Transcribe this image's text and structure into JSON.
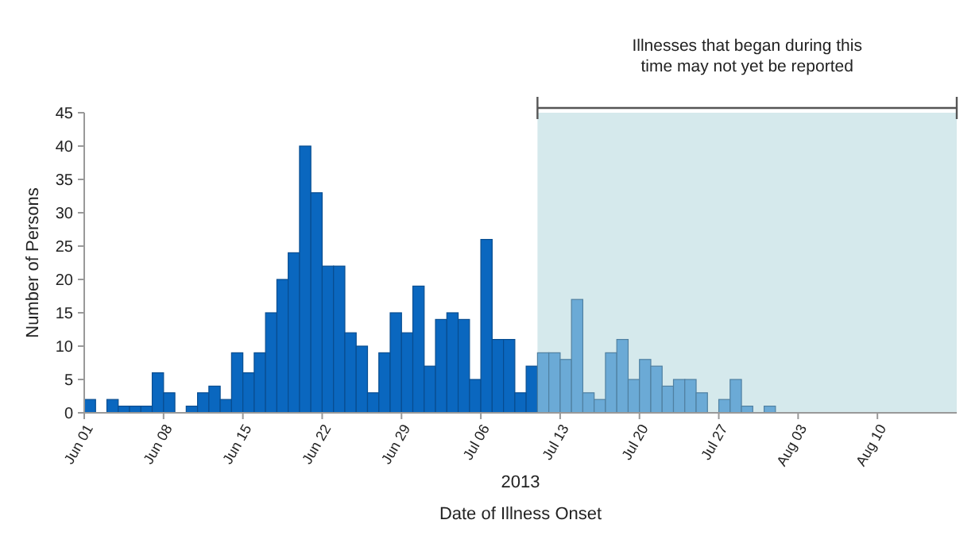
{
  "chart_data": {
    "type": "bar",
    "xlabel": "Date of Illness Onset",
    "ylabel": "Number of Persons",
    "annotations": [
      "2013"
    ],
    "x": [
      "2013-06-01T12:00",
      "2013-06-02T12:00",
      "2013-06-03T12:00",
      "2013-06-04T12:00",
      "2013-06-05T12:00",
      "2013-06-06T12:00",
      "2013-06-07T12:00",
      "2013-06-08T12:00",
      "2013-06-09T12:00",
      "2013-06-10T12:00",
      "2013-06-11T12:00",
      "2013-06-12T12:00",
      "2013-06-13T12:00",
      "2013-06-14T12:00",
      "2013-06-15T12:00",
      "2013-06-16T12:00",
      "2013-06-17T12:00",
      "2013-06-18T12:00",
      "2013-06-19T12:00",
      "2013-06-20T12:00",
      "2013-06-21T12:00",
      "2013-06-22T12:00",
      "2013-06-23T12:00",
      "2013-06-24T12:00",
      "2013-06-25T12:00",
      "2013-06-26T12:00",
      "2013-06-27T12:00",
      "2013-06-28T12:00",
      "2013-06-29T12:00",
      "2013-06-30T12:00",
      "2013-07-01T12:00",
      "2013-07-02T12:00",
      "2013-07-03T12:00",
      "2013-07-04T12:00",
      "2013-07-05T12:00",
      "2013-07-06T12:00",
      "2013-07-07T12:00",
      "2013-07-08T12:00",
      "2013-07-09T12:00",
      "2013-07-10T12:00",
      "2013-07-11T12:00",
      "2013-07-12T12:00",
      "2013-07-13T12:00",
      "2013-07-14T12:00",
      "2013-07-15T12:00",
      "2013-07-16T12:00",
      "2013-07-17T12:00",
      "2013-07-18T12:00",
      "2013-07-19T12:00",
      "2013-07-20T12:00",
      "2013-07-21T12:00",
      "2013-07-22T12:00",
      "2013-07-23T12:00",
      "2013-07-24T12:00",
      "2013-07-25T12:00",
      "2013-07-26T12:00",
      "2013-07-27T12:00",
      "2013-07-28T12:00",
      "2013-07-29T12:00",
      "2013-07-30T12:00",
      "2013-07-31T12:00"
    ],
    "values": [
      2,
      0,
      2,
      1,
      1,
      1,
      6,
      3,
      0,
      1,
      3,
      4,
      2,
      9,
      6,
      9,
      15,
      20,
      24,
      40,
      33,
      22,
      22,
      12,
      10,
      3,
      9,
      15,
      12,
      19,
      7,
      14,
      15,
      14,
      5,
      26,
      11,
      11,
      3,
      7,
      9,
      9,
      8,
      17,
      3,
      2,
      9,
      11,
      5,
      8,
      7,
      4,
      5,
      5,
      3,
      0,
      2,
      5,
      1,
      0,
      1
    ],
    "colors": [
      "#0a67bf",
      "#0a67bf",
      "#0a67bf",
      "#0a67bf",
      "#0a67bf",
      "#0a67bf",
      "#0a67bf",
      "#0a67bf",
      "#0a67bf",
      "#0a67bf",
      "#0a67bf",
      "#0a67bf",
      "#0a67bf",
      "#0a67bf",
      "#0a67bf",
      "#0a67bf",
      "#0a67bf",
      "#0a67bf",
      "#0a67bf",
      "#0a67bf",
      "#0a67bf",
      "#0a67bf",
      "#0a67bf",
      "#0a67bf",
      "#0a67bf",
      "#0a67bf",
      "#0a67bf",
      "#0a67bf",
      "#0a67bf",
      "#0a67bf",
      "#0a67bf",
      "#0a67bf",
      "#0a67bf",
      "#0a67bf",
      "#0a67bf",
      "#0a67bf",
      "#0a67bf",
      "#0a67bf",
      "#0a67bf",
      "#0a67bf",
      "#6baad6",
      "#6baad6",
      "#6baad6",
      "#6baad6",
      "#6baad6",
      "#6baad6",
      "#6baad6",
      "#6baad6",
      "#6baad6",
      "#6baad6",
      "#6baad6",
      "#6baad6",
      "#6baad6",
      "#6baad6",
      "#6baad6",
      "#6baad6",
      "#6baad6",
      "#6baad6",
      "#6baad6",
      "#6baad6",
      "#6baad6"
    ],
    "xlim": [
      "2013-06-01",
      "2013-08-17"
    ],
    "xticks": [
      {
        "value": "2013-06-01",
        "label": "Jun 01"
      },
      {
        "value": "2013-06-08",
        "label": "Jun 08"
      },
      {
        "value": "2013-06-15",
        "label": "Jun 15"
      },
      {
        "value": "2013-06-22",
        "label": "Jun 22"
      },
      {
        "value": "2013-06-29",
        "label": "Jun 29"
      },
      {
        "value": "2013-07-06",
        "label": "Jul 06"
      },
      {
        "value": "2013-07-13",
        "label": "Jul 13"
      },
      {
        "value": "2013-07-20",
        "label": "Jul 20"
      },
      {
        "value": "2013-07-27",
        "label": "Jul 27"
      },
      {
        "value": "2013-08-03",
        "label": "Aug 03"
      },
      {
        "value": "2013-08-10",
        "label": "Aug 10"
      }
    ],
    "ylim": [
      0,
      45
    ],
    "yticks": [
      0,
      5,
      10,
      15,
      20,
      25,
      30,
      35,
      40,
      45
    ],
    "grid": false,
    "bands": [
      {
        "axis": "x",
        "from": "2013-07-11",
        "to": "2013-08-17",
        "label": "Illnesses that began during this time may not yet be reported",
        "color": "#d5e9ec"
      }
    ]
  }
}
